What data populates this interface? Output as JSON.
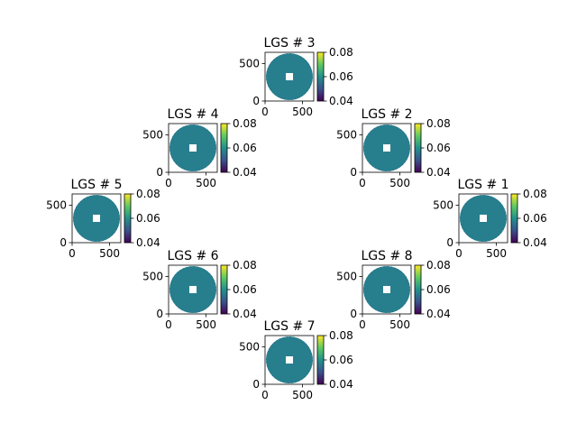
{
  "colors": {
    "background": "#ffffff",
    "axis": "#000000",
    "disk_fill": "#277f8e",
    "colormap": [
      "#440154",
      "#3b528b",
      "#21918c",
      "#5ec962",
      "#fde725"
    ]
  },
  "chart_data": [
    {
      "type": "heatmap",
      "title": "LGS # 1",
      "xlabel": "",
      "ylabel": "",
      "xlim": [
        0,
        650
      ],
      "ylim": [
        0,
        650
      ],
      "xticks": [
        0,
        500
      ],
      "yticks": [
        0,
        500
      ],
      "values": "uniform disk with small central obscuration, value approximately 0.06",
      "colorbar": {
        "range": [
          0.04,
          0.08
        ],
        "ticks": [
          0.04,
          0.06,
          0.08
        ],
        "colormap": "viridis"
      }
    },
    {
      "type": "heatmap",
      "title": "LGS # 2",
      "xlabel": "",
      "ylabel": "",
      "xlim": [
        0,
        650
      ],
      "ylim": [
        0,
        650
      ],
      "xticks": [
        0,
        500
      ],
      "yticks": [
        0,
        500
      ],
      "values": "uniform disk with small central obscuration, value approximately 0.06",
      "colorbar": {
        "range": [
          0.04,
          0.08
        ],
        "ticks": [
          0.04,
          0.06,
          0.08
        ],
        "colormap": "viridis"
      }
    },
    {
      "type": "heatmap",
      "title": "LGS # 3",
      "xlabel": "",
      "ylabel": "",
      "xlim": [
        0,
        650
      ],
      "ylim": [
        0,
        650
      ],
      "xticks": [
        0,
        500
      ],
      "yticks": [
        0,
        500
      ],
      "values": "uniform disk with small central obscuration, value approximately 0.06",
      "colorbar": {
        "range": [
          0.04,
          0.08
        ],
        "ticks": [
          0.04,
          0.06,
          0.08
        ],
        "colormap": "viridis"
      }
    },
    {
      "type": "heatmap",
      "title": "LGS # 4",
      "xlabel": "",
      "ylabel": "",
      "xlim": [
        0,
        650
      ],
      "ylim": [
        0,
        650
      ],
      "xticks": [
        0,
        500
      ],
      "yticks": [
        0,
        500
      ],
      "values": "uniform disk with small central obscuration, value approximately 0.06",
      "colorbar": {
        "range": [
          0.04,
          0.08
        ],
        "ticks": [
          0.04,
          0.06,
          0.08
        ],
        "colormap": "viridis"
      }
    },
    {
      "type": "heatmap",
      "title": "LGS # 5",
      "xlabel": "",
      "ylabel": "",
      "xlim": [
        0,
        650
      ],
      "ylim": [
        0,
        650
      ],
      "xticks": [
        0,
        500
      ],
      "yticks": [
        0,
        500
      ],
      "values": "uniform disk with small central obscuration, value approximately 0.06",
      "colorbar": {
        "range": [
          0.04,
          0.08
        ],
        "ticks": [
          0.04,
          0.06,
          0.08
        ],
        "colormap": "viridis"
      }
    },
    {
      "type": "heatmap",
      "title": "LGS # 6",
      "xlabel": "",
      "ylabel": "",
      "xlim": [
        0,
        650
      ],
      "ylim": [
        0,
        650
      ],
      "xticks": [
        0,
        500
      ],
      "yticks": [
        0,
        500
      ],
      "values": "uniform disk with small central obscuration, value approximately 0.06",
      "colorbar": {
        "range": [
          0.04,
          0.08
        ],
        "ticks": [
          0.04,
          0.06,
          0.08
        ],
        "colormap": "viridis"
      }
    },
    {
      "type": "heatmap",
      "title": "LGS # 7",
      "xlabel": "",
      "ylabel": "",
      "xlim": [
        0,
        650
      ],
      "ylim": [
        0,
        650
      ],
      "xticks": [
        0,
        500
      ],
      "yticks": [
        0,
        500
      ],
      "values": "uniform disk with small central obscuration, value approximately 0.06",
      "colorbar": {
        "range": [
          0.04,
          0.08
        ],
        "ticks": [
          0.04,
          0.06,
          0.08
        ],
        "colormap": "viridis"
      }
    },
    {
      "type": "heatmap",
      "title": "LGS # 8",
      "xlabel": "",
      "ylabel": "",
      "xlim": [
        0,
        650
      ],
      "ylim": [
        0,
        650
      ],
      "xticks": [
        0,
        500
      ],
      "yticks": [
        0,
        500
      ],
      "values": "uniform disk with small central obscuration, value approximately 0.06",
      "colorbar": {
        "range": [
          0.04,
          0.08
        ],
        "ticks": [
          0.04,
          0.06,
          0.08
        ],
        "colormap": "viridis"
      }
    }
  ]
}
